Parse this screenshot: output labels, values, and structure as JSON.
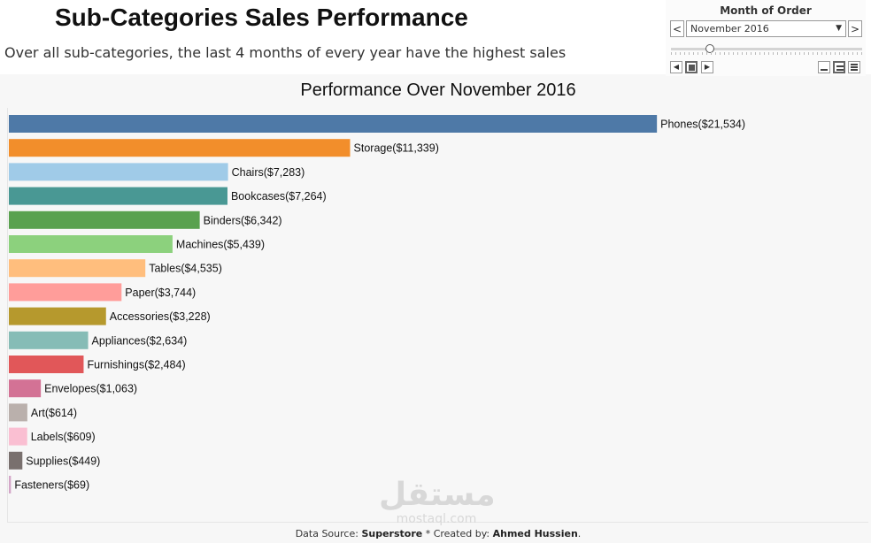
{
  "header": {
    "title": "Sub-Categories Sales Performance",
    "subtitle": "Over all sub-categories, the last 4 months of every year have the highest sales"
  },
  "filter": {
    "title": "Month of Order",
    "selected": "November 2016",
    "prev_glyph": "<",
    "next_glyph": ">",
    "dropdown_glyph": "▼",
    "slider_value": 0.2
  },
  "chart_data": {
    "type": "bar",
    "orientation": "horizontal",
    "title": "Performance Over November 2016",
    "xlabel": "",
    "ylabel": "",
    "xlim": [
      0,
      26500
    ],
    "grid": false,
    "legend": "none",
    "categories": [
      "Phones",
      "Storage",
      "Chairs",
      "Bookcases",
      "Binders",
      "Machines",
      "Tables",
      "Paper",
      "Accessories",
      "Appliances",
      "Furnishings",
      "Envelopes",
      "Art",
      "Labels",
      "Supplies",
      "Fasteners"
    ],
    "values": [
      21534,
      11339,
      7283,
      7264,
      6342,
      5439,
      4535,
      3744,
      3228,
      2634,
      2484,
      1063,
      614,
      609,
      449,
      69
    ],
    "labels": [
      "Phones($21,534)",
      "Storage($11,339)",
      "Chairs($7,283)",
      "Bookcases($7,264)",
      "Binders($6,342)",
      "Machines($5,439)",
      "Tables($4,535)",
      "Paper($3,744)",
      "Accessories($3,228)",
      "Appliances($2,634)",
      "Furnishings($2,484)",
      "Envelopes($1,063)",
      "Art($614)",
      "Labels($609)",
      "Supplies($449)",
      "Fasteners($69)"
    ],
    "colors": [
      "#4e79a7",
      "#f28e2b",
      "#a0cbe8",
      "#499894",
      "#59a14f",
      "#8cd17d",
      "#ffbe7d",
      "#ff9d9a",
      "#b6992d",
      "#86bcb6",
      "#e15759",
      "#d37295",
      "#bab0ac",
      "#fabfd2",
      "#79706e",
      "#d4a6c8"
    ]
  },
  "footer": {
    "prefix": "Data Source: ",
    "source": "Superstore",
    "middle": " * Created by: ",
    "author": "Ahmed Hussien",
    "suffix": "."
  },
  "watermark": {
    "arabic": "مستقل",
    "site": "mostaql.com"
  }
}
